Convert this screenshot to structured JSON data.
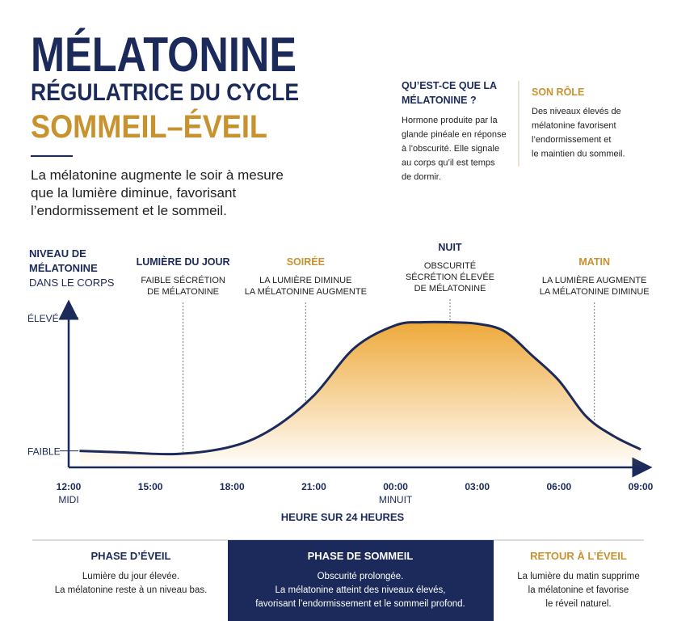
{
  "header": {
    "title": "MÉLATONINE",
    "subtitle": "RÉGULATRICE DU CYCLE",
    "highlight": "SOMMEIL–ÉVEIL",
    "intro": [
      "La mélatonine augmente le soir à mesure",
      "que la lumière diminue, favorisant",
      "l’endormissement et le sommeil."
    ]
  },
  "info": [
    {
      "title": [
        "QU’EST-CE QUE LA",
        "MÉLATONINE ?"
      ],
      "text": [
        "Hormone produite par la",
        "glande pinéale en réponse",
        "à l’obscurité. Elle signale",
        "au corps qu’il est temps",
        "de dormir."
      ]
    },
    {
      "title": [
        "SON RÔLE"
      ],
      "text": [
        "Des niveaux élevés de",
        "mélatonine favorisent",
        "l’endormissement et",
        "le maintien du sommeil."
      ]
    }
  ],
  "chart_data": {
    "type": "area",
    "y_label": [
      "NIVEAU DE",
      "MÉLATONINE",
      "DANS LE CORPS"
    ],
    "x_label": "HEURE SUR 24 HEURES",
    "color": "#1b2a5a",
    "fill_color": "#eea93a",
    "x": [
      0.4,
      2,
      4,
      6,
      7.5,
      9,
      10.5,
      12,
      13,
      14,
      15,
      16,
      17,
      18,
      19,
      20,
      21
    ],
    "values": [
      1.1,
      1.0,
      0.9,
      1.4,
      2.6,
      4.8,
      8.0,
      9.5,
      9.7,
      9.7,
      9.6,
      9.1,
      7.5,
      5.8,
      3.4,
      2.1,
      1.2
    ],
    "xlim": [
      0,
      21
    ],
    "ylim": [
      0,
      10
    ],
    "xticks": [
      {
        "value": 0,
        "label": "12:00"
      },
      {
        "value": 3,
        "label": "15:00"
      },
      {
        "value": 6,
        "label": "18:00"
      },
      {
        "value": 9,
        "label": "21:00"
      },
      {
        "value": 12,
        "label": "00:00"
      },
      {
        "value": 15,
        "label": "03:00"
      },
      {
        "value": 18,
        "label": "06:00"
      },
      {
        "value": 21,
        "label": "09:00"
      }
    ],
    "xtick_notes": [
      {
        "value": 0,
        "label": "MIDI"
      },
      {
        "value": 12,
        "label": "MINUIT"
      }
    ],
    "yticks": [
      {
        "value": 1.1,
        "label": "FAIBLE"
      },
      {
        "value": 10,
        "label": "ÉLEVÉ"
      }
    ],
    "annotations": [
      {
        "x": 4.2,
        "title": "LUMIÈRE DU JOUR",
        "text": [
          "FAIBLE SÉCRÉTION",
          "DE MÉLATONINE"
        ],
        "color": "#1b2a5a"
      },
      {
        "x": 8.7,
        "title": "SOIRÉE",
        "text": [
          "LA LUMIÈRE DIMINUE",
          "LA MÉLATONINE AUGMENTE"
        ],
        "color": "#c8922f"
      },
      {
        "x": 14,
        "title": "NUIT",
        "text": [
          "OBSCURITÉ",
          "SÉCRÉTION ÉLEVÉE",
          "DE MÉLATONINE"
        ],
        "color": "#1b2a5a"
      },
      {
        "x": 19.3,
        "title": "MATIN",
        "text": [
          "LA LUMIÈRE AUGMENTE",
          "LA MÉLATONINE DIMINUE"
        ],
        "color": "#c8922f"
      }
    ]
  },
  "phases": [
    {
      "title": "PHASE D’ÉVEIL",
      "text": [
        "Lumière du jour élevée.",
        "La mélatonine reste à un niveau bas."
      ]
    },
    {
      "title": "PHASE DE SOMMEIL",
      "text": [
        "Obscurité prolongée.",
        "La mélatonine atteint des niveaux élevés,",
        "favorisant l’endormissement et le sommeil profond."
      ]
    },
    {
      "title": "RETOUR À L’ÉVEIL",
      "text": [
        "La lumière du matin supprime",
        "la mélatonine et favorise",
        "le réveil naturel."
      ]
    }
  ]
}
